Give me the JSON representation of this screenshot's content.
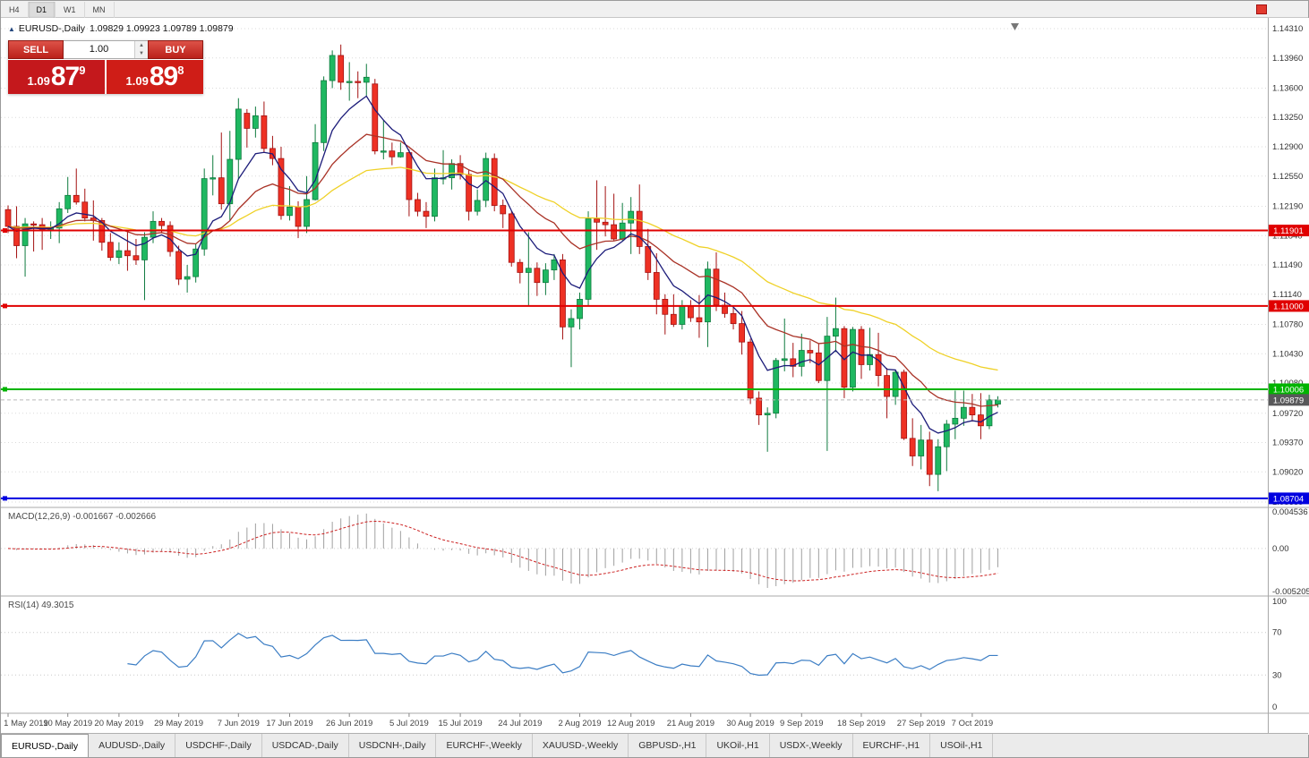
{
  "toolbar": {
    "timeframes": [
      {
        "label": "H4",
        "active": false
      },
      {
        "label": "D1",
        "active": true
      },
      {
        "label": "W1",
        "active": false
      },
      {
        "label": "MN",
        "active": false
      }
    ]
  },
  "chart": {
    "title_symbol": "EURUSD-,Daily",
    "title_ohlc": "1.09829 1.09923 1.09789 1.09879"
  },
  "trade_panel": {
    "sell_label": "SELL",
    "buy_label": "BUY",
    "volume": "1.00",
    "sell_price": {
      "prefix": "1.09",
      "big": "87",
      "sup": "9"
    },
    "buy_price": {
      "prefix": "1.09",
      "big": "89",
      "sup": "8"
    }
  },
  "chart_data": {
    "type": "candlestick",
    "symbol": "EURUSD-",
    "timeframe": "Daily",
    "title": "EURUSD-,Daily 1.09829 1.09923 1.09789 1.09879",
    "colors": {
      "up": "#1FB861",
      "up_border": "#0E7A3E",
      "down": "#EE3124",
      "down_border": "#A31111",
      "grid": "#dadada",
      "axis_text": "#333333"
    },
    "y_axis_ticks": [
      "1.14310",
      "1.13960",
      "1.13600",
      "1.13250",
      "1.12900",
      "1.12550",
      "1.12190",
      "1.11840",
      "1.11490",
      "1.11140",
      "1.10780",
      "1.10430",
      "1.10080",
      "1.09720",
      "1.09370",
      "1.09020",
      "1.08660"
    ],
    "x_labels": [
      {
        "label": "1 May 2019",
        "i": 0
      },
      {
        "label": "10 May 2019",
        "i": 7
      },
      {
        "label": "20 May 2019",
        "i": 13
      },
      {
        "label": "29 May 2019",
        "i": 20
      },
      {
        "label": "7 Jun 2019",
        "i": 27
      },
      {
        "label": "17 Jun 2019",
        "i": 33
      },
      {
        "label": "26 Jun 2019",
        "i": 40
      },
      {
        "label": "5 Jul 2019",
        "i": 47
      },
      {
        "label": "15 Jul 2019",
        "i": 53
      },
      {
        "label": "24 Jul 2019",
        "i": 60
      },
      {
        "label": "2 Aug 2019",
        "i": 67
      },
      {
        "label": "12 Aug 2019",
        "i": 73
      },
      {
        "label": "21 Aug 2019",
        "i": 80
      },
      {
        "label": "30 Aug 2019",
        "i": 87
      },
      {
        "label": "9 Sep 2019",
        "i": 93
      },
      {
        "label": "18 Sep 2019",
        "i": 100
      },
      {
        "label": "27 Sep 2019",
        "i": 107
      },
      {
        "label": "7 Oct 2019",
        "i": 113
      }
    ],
    "candles": [
      [
        1.1215,
        1.122,
        1.1187,
        1.1195
      ],
      [
        1.1195,
        1.1219,
        1.1157,
        1.1172
      ],
      [
        1.1172,
        1.1205,
        1.1135,
        1.1198
      ],
      [
        1.1198,
        1.1201,
        1.1165,
        1.1197
      ],
      [
        1.1197,
        1.1205,
        1.1167,
        1.119
      ],
      [
        1.119,
        1.1201,
        1.118,
        1.1193
      ],
      [
        1.1193,
        1.1224,
        1.1175,
        1.1216
      ],
      [
        1.1216,
        1.1254,
        1.1211,
        1.1232
      ],
      [
        1.1232,
        1.1264,
        1.1221,
        1.1224
      ],
      [
        1.1224,
        1.124,
        1.1201,
        1.1205
      ],
      [
        1.1205,
        1.1226,
        1.1178,
        1.1202
      ],
      [
        1.1202,
        1.1205,
        1.1166,
        1.1176
      ],
      [
        1.1176,
        1.1187,
        1.1154,
        1.1158
      ],
      [
        1.1158,
        1.1176,
        1.115,
        1.1166
      ],
      [
        1.1166,
        1.1188,
        1.1142,
        1.116
      ],
      [
        1.116,
        1.118,
        1.1149,
        1.1155
      ],
      [
        1.1155,
        1.1188,
        1.1107,
        1.1182
      ],
      [
        1.1182,
        1.1213,
        1.1175,
        1.1201
      ],
      [
        1.1201,
        1.1205,
        1.1187,
        1.1196
      ],
      [
        1.1196,
        1.1201,
        1.1159,
        1.1165
      ],
      [
        1.1165,
        1.1172,
        1.1125,
        1.1132
      ],
      [
        1.1132,
        1.1149,
        1.1116,
        1.1135
      ],
      [
        1.1135,
        1.1174,
        1.1128,
        1.1168
      ],
      [
        1.1168,
        1.1264,
        1.116,
        1.1252
      ],
      [
        1.1252,
        1.128,
        1.1232,
        1.1253
      ],
      [
        1.1253,
        1.1307,
        1.1215,
        1.1222
      ],
      [
        1.1222,
        1.1309,
        1.1201,
        1.1275
      ],
      [
        1.1275,
        1.1348,
        1.1251,
        1.1335
      ],
      [
        1.133,
        1.1335,
        1.1289,
        1.1312
      ],
      [
        1.1312,
        1.1338,
        1.1301,
        1.1327
      ],
      [
        1.1327,
        1.1344,
        1.1283,
        1.1288
      ],
      [
        1.1288,
        1.1303,
        1.1268,
        1.1276
      ],
      [
        1.1276,
        1.129,
        1.1203,
        1.1208
      ],
      [
        1.1208,
        1.1243,
        1.1202,
        1.1218
      ],
      [
        1.1218,
        1.1225,
        1.1181,
        1.1195
      ],
      [
        1.1195,
        1.1255,
        1.1187,
        1.1227
      ],
      [
        1.1227,
        1.1317,
        1.1226,
        1.1295
      ],
      [
        1.1295,
        1.1374,
        1.1285,
        1.1369
      ],
      [
        1.1369,
        1.1405,
        1.136,
        1.1399
      ],
      [
        1.1399,
        1.1412,
        1.1358,
        1.1367
      ],
      [
        1.1367,
        1.1391,
        1.1345,
        1.1368
      ],
      [
        1.1368,
        1.138,
        1.1348,
        1.1367
      ],
      [
        1.1367,
        1.1389,
        1.1351,
        1.1373
      ],
      [
        1.1365,
        1.1371,
        1.1281,
        1.1285
      ],
      [
        1.1285,
        1.1322,
        1.1275,
        1.1285
      ],
      [
        1.1285,
        1.1295,
        1.1268,
        1.1278
      ],
      [
        1.1278,
        1.1295,
        1.1277,
        1.1283
      ],
      [
        1.1283,
        1.1287,
        1.1207,
        1.1227
      ],
      [
        1.1227,
        1.1235,
        1.1207,
        1.1213
      ],
      [
        1.1213,
        1.1224,
        1.1193,
        1.1207
      ],
      [
        1.1207,
        1.1264,
        1.1201,
        1.1253
      ],
      [
        1.1253,
        1.1286,
        1.1245,
        1.1253
      ],
      [
        1.1253,
        1.1275,
        1.1239,
        1.127
      ],
      [
        1.127,
        1.128,
        1.1251,
        1.1257
      ],
      [
        1.1257,
        1.1263,
        1.1202,
        1.1213
      ],
      [
        1.1213,
        1.1239,
        1.1208,
        1.1226
      ],
      [
        1.1226,
        1.1283,
        1.1218,
        1.1276
      ],
      [
        1.1276,
        1.1282,
        1.1213,
        1.122
      ],
      [
        1.122,
        1.1227,
        1.1193,
        1.121
      ],
      [
        1.121,
        1.1213,
        1.1147,
        1.1152
      ],
      [
        1.1152,
        1.1156,
        1.1127,
        1.114
      ],
      [
        1.114,
        1.1188,
        1.1101,
        1.1145
      ],
      [
        1.1145,
        1.1152,
        1.1112,
        1.1128
      ],
      [
        1.1128,
        1.1151,
        1.1113,
        1.1143
      ],
      [
        1.1143,
        1.1162,
        1.1131,
        1.1155
      ],
      [
        1.1155,
        1.1162,
        1.106,
        1.1075
      ],
      [
        1.1075,
        1.1096,
        1.1027,
        1.1085
      ],
      [
        1.1085,
        1.1116,
        1.1072,
        1.1108
      ],
      [
        1.1108,
        1.1213,
        1.1101,
        1.1204
      ],
      [
        1.1204,
        1.125,
        1.1167,
        1.12
      ],
      [
        1.12,
        1.1243,
        1.1183,
        1.1197
      ],
      [
        1.1197,
        1.1234,
        1.1178,
        1.118
      ],
      [
        1.118,
        1.1223,
        1.1178,
        1.1199
      ],
      [
        1.1199,
        1.123,
        1.1162,
        1.1213
      ],
      [
        1.1213,
        1.1245,
        1.1162,
        1.1171
      ],
      [
        1.1171,
        1.1192,
        1.1131,
        1.114
      ],
      [
        1.114,
        1.1163,
        1.109,
        1.1108
      ],
      [
        1.1108,
        1.1114,
        1.1066,
        1.109
      ],
      [
        1.109,
        1.1114,
        1.1075,
        1.1078
      ],
      [
        1.1078,
        1.1107,
        1.1072,
        1.11
      ],
      [
        1.11,
        1.1107,
        1.1081,
        1.1086
      ],
      [
        1.1086,
        1.1113,
        1.1062,
        1.1081
      ],
      [
        1.1081,
        1.1153,
        1.1051,
        1.1144
      ],
      [
        1.1144,
        1.1164,
        1.1094,
        1.1101
      ],
      [
        1.1101,
        1.1116,
        1.1086,
        1.1091
      ],
      [
        1.1091,
        1.1098,
        1.1072,
        1.1079
      ],
      [
        1.1079,
        1.1094,
        1.1042,
        1.1057
      ],
      [
        1.1057,
        1.1061,
        1.0983,
        1.099
      ],
      [
        1.099,
        1.0998,
        1.0958,
        1.097
      ],
      [
        1.097,
        1.0979,
        1.0926,
        1.0972
      ],
      [
        1.0972,
        1.1038,
        1.0966,
        1.1035
      ],
      [
        1.1035,
        1.1085,
        1.1022,
        1.1037
      ],
      [
        1.1037,
        1.1056,
        1.1015,
        1.1028
      ],
      [
        1.1028,
        1.1067,
        1.1016,
        1.1047
      ],
      [
        1.1047,
        1.1059,
        1.1032,
        1.1044
      ],
      [
        1.1044,
        1.1055,
        1.1008,
        1.1011
      ],
      [
        1.1011,
        1.1087,
        1.0927,
        1.1064
      ],
      [
        1.1064,
        1.111,
        1.1045,
        1.1073
      ],
      [
        1.1073,
        1.1076,
        1.099,
        1.1003
      ],
      [
        1.1003,
        1.1075,
        1.0998,
        1.1072
      ],
      [
        1.1072,
        1.1076,
        1.1013,
        1.103
      ],
      [
        1.103,
        1.1074,
        1.1023,
        1.1042
      ],
      [
        1.1042,
        1.1068,
        1.1004,
        1.1017
      ],
      [
        1.1017,
        1.1026,
        1.0966,
        1.0992
      ],
      [
        1.0992,
        1.1024,
        1.0982,
        1.1021
      ],
      [
        1.1021,
        1.1024,
        1.094,
        1.0942
      ],
      [
        1.0942,
        1.0966,
        1.0909,
        1.0921
      ],
      [
        1.0921,
        1.0958,
        1.0905,
        1.094
      ],
      [
        1.094,
        1.095,
        1.0885,
        1.0899
      ],
      [
        1.0899,
        1.0941,
        1.0879,
        1.0932
      ],
      [
        1.0932,
        1.0964,
        1.0903,
        1.0959
      ],
      [
        1.0959,
        1.0999,
        1.0941,
        1.0966
      ],
      [
        1.0966,
        1.0999,
        1.0957,
        1.0979
      ],
      [
        1.0979,
        1.0995,
        1.0962,
        1.097
      ],
      [
        1.097,
        1.0996,
        1.0941,
        1.0957
      ],
      [
        1.0957,
        1.0994,
        1.0953,
        1.0988
      ],
      [
        1.09829,
        1.09923,
        1.09789,
        1.09879
      ]
    ],
    "hlines": [
      {
        "value": 1.11901,
        "label": "1.11901",
        "color": "#E00000",
        "label_fg": "#ffffff"
      },
      {
        "value": 1.11,
        "label": "1.11000",
        "color": "#E00000",
        "label_fg": "#ffffff"
      },
      {
        "value": 1.10006,
        "label": "1.10006",
        "color": "#00B400",
        "label_fg": "#ffffff"
      },
      {
        "value": 1.08704,
        "label": "1.08704",
        "color": "#0000E0",
        "label_fg": "#ffffff"
      }
    ],
    "bid": {
      "value": 1.09879,
      "label": "1.09879",
      "label_bg": "#58585a",
      "label_fg": "#ffffff"
    },
    "moving_averages": [
      {
        "period": 40,
        "color": "#EFD127"
      },
      {
        "period": 18,
        "color": "#A93226"
      },
      {
        "period": 7,
        "color": "#1C1C7A"
      }
    ],
    "macd": {
      "label": "MACD(12,26,9) -0.001667 -0.002666",
      "fast": 12,
      "slow": 26,
      "signal": 9,
      "axis_max": 0.004536,
      "axis_min": -0.005205,
      "axis_labels": [
        "0.004536",
        "0.00",
        "-0.005205"
      ],
      "histogram_color": "#a0a0a0",
      "signal_color": "#cc2222"
    },
    "rsi": {
      "label": "RSI(14) 49.3015",
      "period": 14,
      "levels": [
        70,
        30
      ],
      "axis_labels": [
        "100",
        "70",
        "30",
        "0"
      ],
      "line_color": "#3b7dc4"
    }
  },
  "tabs": [
    {
      "label": "EURUSD-,Daily",
      "active": true
    },
    {
      "label": "AUDUSD-,Daily",
      "active": false
    },
    {
      "label": "USDCHF-,Daily",
      "active": false
    },
    {
      "label": "USDCAD-,Daily",
      "active": false
    },
    {
      "label": "USDCNH-,Daily",
      "active": false
    },
    {
      "label": "EURCHF-,Weekly",
      "active": false
    },
    {
      "label": "XAUUSD-,Weekly",
      "active": false
    },
    {
      "label": "GBPUSD-,H1",
      "active": false
    },
    {
      "label": "UKOil-,H1",
      "active": false
    },
    {
      "label": "USDX-,Weekly",
      "active": false
    },
    {
      "label": "EURCHF-,H1",
      "active": false
    },
    {
      "label": "USOil-,H1",
      "active": false
    }
  ]
}
